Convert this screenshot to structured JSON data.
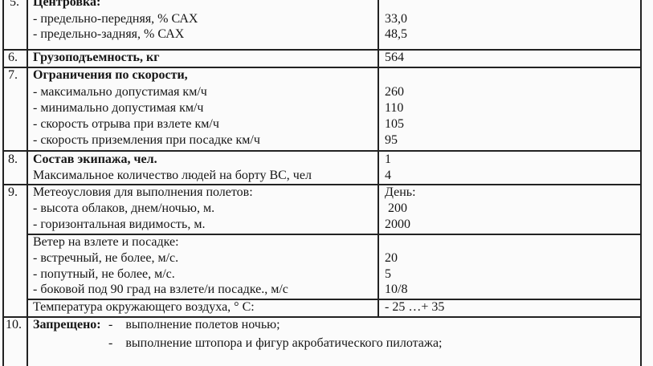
{
  "rows": {
    "r5": {
      "num": "5.",
      "title": "Центровка:",
      "lines": [
        "- предельно-передняя, % САХ",
        "- предельно-задняя, % САХ"
      ],
      "values": [
        "33,0",
        "48,5"
      ]
    },
    "r6": {
      "num": "6.",
      "title": "Грузоподъемность, кг",
      "value": "564"
    },
    "r7": {
      "num": "7.",
      "title": "Ограничения по скорости,",
      "lines": [
        "- максимально допустимая км/ч",
        "- минимально допустимая км/ч",
        "- скорость отрыва при взлете км/ч",
        "- скорость приземления при посадке км/ч"
      ],
      "values": [
        "260",
        "110",
        "105",
        "95"
      ]
    },
    "r8": {
      "num": "8.",
      "title": "Состав экипажа, чел.",
      "title_value": "1",
      "line": "Максимальное количество людей на борту ВС, чел",
      "value": "4"
    },
    "r9": {
      "num": "9.",
      "title": "Метеоусловия для выполнения полетов:",
      "title_value": "День:",
      "lines": [
        "- высота облаков, днем/ночью, м.",
        "- горизонтальная видимость, м."
      ],
      "values": [
        " 200",
        "2000"
      ]
    },
    "wind": {
      "title": "Ветер на взлете и посадке:",
      "lines": [
        "- встречный, не более, м/с.",
        "- попутный, не более, м/с.",
        "- боковой под 90 град на взлете/и посадке., м/с"
      ],
      "values": [
        "20",
        "5",
        "10/8"
      ]
    },
    "temp": {
      "title": "Температура окружающего воздуха, ° С:",
      "value": "- 25 …+ 35"
    },
    "r10": {
      "num": "10.",
      "title": "Запрещено:",
      "items": [
        "-    выполнение полетов ночью;",
        "-    выполнение штопора и фигур акробатического пилотажа;"
      ]
    }
  }
}
